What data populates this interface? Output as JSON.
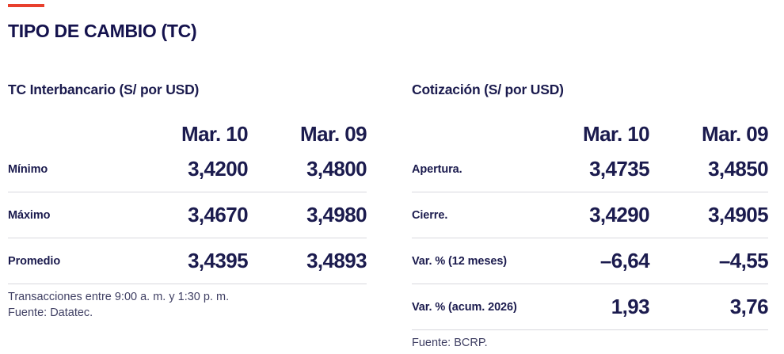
{
  "title": "TIPO DE CAMBIO (TC)",
  "colors": {
    "navy_text": "#1b1b4e",
    "accent_red": "#e8402d",
    "divider_gray": "#d8d8de",
    "note_gray": "#3f3f63"
  },
  "tables": [
    {
      "header": "TC Interbancario (S/ por USD)",
      "columns": [
        "Mar. 10",
        "Mar. 09"
      ],
      "rows": [
        {
          "label": "Mínimo",
          "values": [
            "3,4200",
            "3,4800"
          ]
        },
        {
          "label": "Máximo",
          "values": [
            "3,4670",
            "3,4980"
          ]
        },
        {
          "label": "Promedio",
          "values": [
            "3,4395",
            "3,4893"
          ]
        }
      ],
      "notes": [
        "Transacciones entre 9:00 a. m. y 1:30 p. m.",
        "Fuente: Datatec."
      ]
    },
    {
      "header": "Cotización (S/ por USD)",
      "columns": [
        "Mar. 10",
        "Mar. 09"
      ],
      "rows": [
        {
          "label": "Apertura.",
          "values": [
            "3,4735",
            "3,4850"
          ]
        },
        {
          "label": "Cierre.",
          "values": [
            "3,4290",
            "3,4905"
          ]
        },
        {
          "label": "Var. % (12 meses)",
          "values": [
            "–6,64",
            "–4,55"
          ]
        },
        {
          "label": "Var. % (acum. 2026)",
          "values": [
            "1,93",
            "3,76"
          ]
        }
      ],
      "notes": [
        "Fuente: BCRP."
      ]
    }
  ],
  "chart_data": [
    {
      "type": "table",
      "title": "TC Interbancario (S/ por USD)",
      "columns": [
        "",
        "Mar. 10",
        "Mar. 09"
      ],
      "rows": [
        [
          "Mínimo",
          3.42,
          3.48
        ],
        [
          "Máximo",
          3.467,
          3.498
        ],
        [
          "Promedio",
          3.4395,
          3.4893
        ]
      ],
      "notes": [
        "Transacciones entre 9:00 a. m. y 1:30 p. m.",
        "Fuente: Datatec."
      ]
    },
    {
      "type": "table",
      "title": "Cotización (S/ por USD)",
      "columns": [
        "",
        "Mar. 10",
        "Mar. 09"
      ],
      "rows": [
        [
          "Apertura.",
          3.4735,
          3.485
        ],
        [
          "Cierre.",
          3.429,
          3.4905
        ],
        [
          "Var. % (12 meses)",
          -6.64,
          -4.55
        ],
        [
          "Var. % (acum. 2026)",
          1.93,
          3.76
        ]
      ],
      "notes": [
        "Fuente: BCRP."
      ]
    }
  ]
}
